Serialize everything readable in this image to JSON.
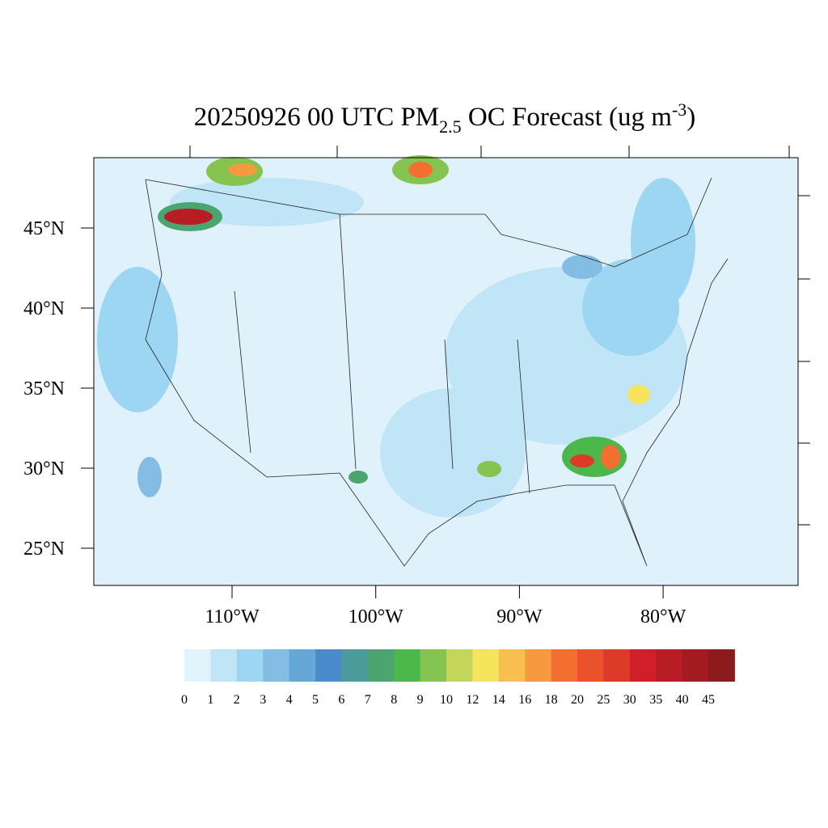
{
  "chart_data": {
    "type": "map",
    "title": {
      "main": "20250926 00 UTC PM",
      "sub": "2.5",
      "middle": " OC Forecast (ug m",
      "sup": "-3",
      "end": ")"
    },
    "lat_ticks": [
      {
        "value": 45,
        "label": "45°N"
      },
      {
        "value": 40,
        "label": "40°N"
      },
      {
        "value": 35,
        "label": "35°N"
      },
      {
        "value": 30,
        "label": "30°N"
      },
      {
        "value": 25,
        "label": "25°N"
      }
    ],
    "lon_ticks": [
      {
        "value": -110,
        "label": "110°W"
      },
      {
        "value": -100,
        "label": "100°W"
      },
      {
        "value": -90,
        "label": "90°W"
      },
      {
        "value": -80,
        "label": "80°W"
      }
    ],
    "levels": [
      0,
      1,
      2,
      3,
      4,
      5,
      6,
      7,
      8,
      9,
      10,
      12,
      14,
      16,
      18,
      20,
      25,
      30,
      35,
      40,
      45
    ],
    "colors": [
      "#e1f3fb",
      "#bfe5f6",
      "#9dd6f2",
      "#84bde3",
      "#66a7d8",
      "#4a8bcb",
      "#4a9b9a",
      "#4aa56e",
      "#4cb74a",
      "#86c451",
      "#c4d65a",
      "#f6e45c",
      "#f8bf4e",
      "#f79a3f",
      "#f36f30",
      "#e9522b",
      "#de3a2a",
      "#d01f2a",
      "#b81d26",
      "#a31a21",
      "#8d1a1c"
    ]
  }
}
